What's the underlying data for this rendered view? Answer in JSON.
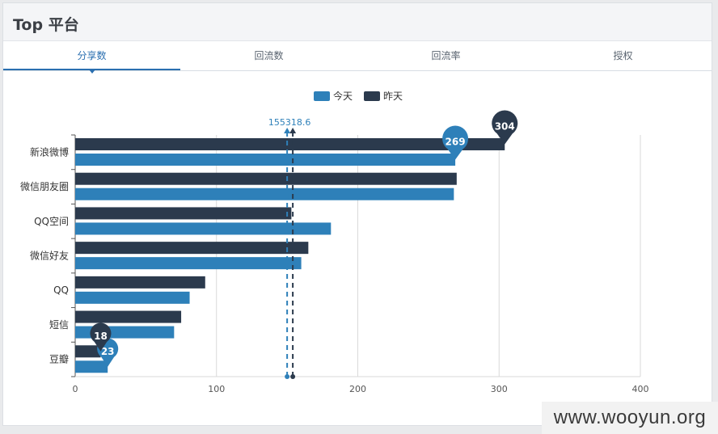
{
  "panel": {
    "title": "Top 平台"
  },
  "tabs": [
    {
      "label": "分享数",
      "active": true
    },
    {
      "label": "回流数",
      "active": false
    },
    {
      "label": "回流率",
      "active": false
    },
    {
      "label": "授权",
      "active": false
    }
  ],
  "watermark": "www.wooyun.org",
  "colors": {
    "today": "#2e80b9",
    "yesterday": "#2b3a4d",
    "grid": "#d9d9d9",
    "axis": "#555555"
  },
  "chart_data": {
    "type": "bar",
    "orientation": "horizontal",
    "categories": [
      "新浪微博",
      "微信朋友圈",
      "QQ空间",
      "微信好友",
      "QQ",
      "短信",
      "豆瓣"
    ],
    "series": [
      {
        "name": "今天",
        "values": [
          269,
          268,
          181,
          160,
          81,
          70,
          23
        ],
        "color": "#2e80b9"
      },
      {
        "name": "昨天",
        "values": [
          304,
          270,
          153,
          165,
          92,
          75,
          18
        ],
        "color": "#2b3a4d"
      }
    ],
    "xlim": [
      0,
      400
    ],
    "xticks": [
      0,
      100,
      200,
      300,
      400
    ],
    "grid": true,
    "legend": "top-center",
    "mark_points": [
      {
        "series": "今天",
        "label": "269",
        "category": "新浪微博",
        "value": 269
      },
      {
        "series": "今天",
        "label": "23",
        "category": "豆瓣",
        "value": 23
      },
      {
        "series": "昨天",
        "label": "304",
        "category": "新浪微博",
        "value": 304
      },
      {
        "series": "昨天",
        "label": "18",
        "category": "豆瓣",
        "value": 18
      }
    ],
    "mark_lines": [
      {
        "series": "今天",
        "value": 150
      },
      {
        "series": "昨天",
        "value": 154
      }
    ],
    "mark_line_label": "155318.6"
  }
}
